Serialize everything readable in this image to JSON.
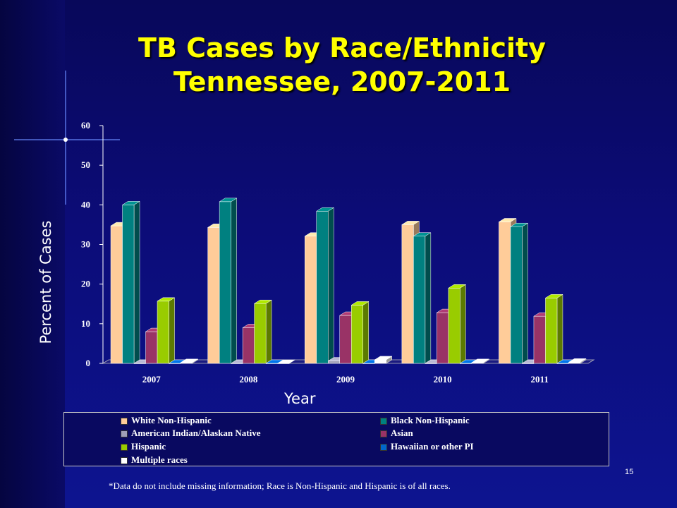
{
  "slide": {
    "title_line1": "TB Cases by Race/Ethnicity",
    "title_line2": "Tennessee, 2007-2011",
    "footnote": "*Data do not include missing information; Race is Non-Hispanic and Hispanic is of all races.",
    "slide_number": "15"
  },
  "chart_data": {
    "type": "bar",
    "ylabel": "Percent of Cases",
    "xlabel": "Year",
    "ylim": [
      0,
      60
    ],
    "yticks": [
      0,
      10,
      20,
      30,
      40,
      50,
      60
    ],
    "categories": [
      "2007",
      "2008",
      "2009",
      "2010",
      "2011"
    ],
    "series": [
      {
        "name": "White Non-Hispanic",
        "color": "#ffcc99",
        "values": [
          34.7,
          34.3,
          32.1,
          35.0,
          35.7
        ]
      },
      {
        "name": "Black Non-Hispanic",
        "color": "#008080",
        "values": [
          40.0,
          40.8,
          38.4,
          32.1,
          34.5
        ]
      },
      {
        "name": "American Indian/Alaskan Native",
        "color": "#a0a0b8",
        "values": [
          0,
          0,
          0.6,
          0,
          0
        ]
      },
      {
        "name": "Asian",
        "color": "#993366",
        "values": [
          8.0,
          9.0,
          12.1,
          12.8,
          11.9
        ]
      },
      {
        "name": "Hispanic",
        "color": "#99cc00",
        "values": [
          15.7,
          15.1,
          14.7,
          19.0,
          16.5
        ]
      },
      {
        "name": "Hawaiian or other PI",
        "color": "#0066cc",
        "values": [
          0,
          0,
          0,
          0,
          0
        ]
      },
      {
        "name": "Multiple races",
        "color": "#ffffff",
        "values": [
          0.2,
          0,
          0.9,
          0.2,
          0.3
        ]
      }
    ],
    "legend_position": "bottom",
    "grid": false
  }
}
